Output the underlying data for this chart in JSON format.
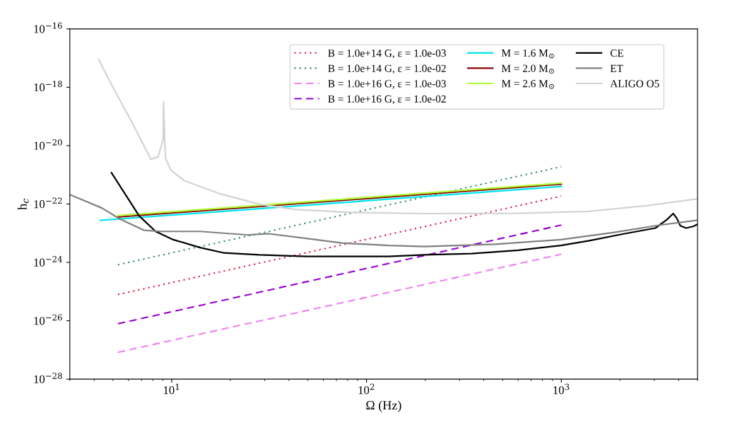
{
  "chart_data": {
    "type": "line",
    "xlabel": "Ω (Hz)",
    "ylabel": "h$_{c}$",
    "log": "xy",
    "grid": false,
    "legend": "top right",
    "xlim": [
      3,
      5000
    ],
    "ylim": [
      1e-28,
      1e-16
    ],
    "xticks": [
      {
        "value": 10,
        "label": "10$^{1}$"
      },
      {
        "value": 100,
        "label": "10$^{2}$"
      },
      {
        "value": 1000,
        "label": "10$^{3}$"
      }
    ],
    "yticks": [
      {
        "value": 1e-28,
        "label": "10$^{−28}$"
      },
      {
        "value": 1e-26,
        "label": "10$^{−26}$"
      },
      {
        "value": 1e-24,
        "label": "10$^{−24}$"
      },
      {
        "value": 1e-22,
        "label": "10$^{−22}$"
      },
      {
        "value": 1e-20,
        "label": "10$^{−20}$"
      },
      {
        "value": 1e-18,
        "label": "10$^{−18}$"
      },
      {
        "value": 1e-16,
        "label": "10$^{−16}$"
      }
    ],
    "series": [
      {
        "name": "B = 1.0e+14 G, ε = 1.0e-03",
        "color": "#dc143c",
        "line_style": "dotted",
        "x": [
          5.3,
          1000
        ],
        "values": [
          7.9e-26,
          1.86e-22
        ]
      },
      {
        "name": "B = 1.0e+14 G, ε = 1.0e-02",
        "color": "#2e8b57",
        "line_style": "dotted",
        "x": [
          5.3,
          1000
        ],
        "values": [
          8.3e-25,
          1.9e-21
        ]
      },
      {
        "name": "B = 1.0e+16 G, ε = 1.0e-03",
        "color": "#ee82ee",
        "line_style": "dashed",
        "x": [
          5.3,
          1000
        ],
        "values": [
          8.3e-28,
          1.9e-24
        ]
      },
      {
        "name": "B = 1.0e+16 G, ε = 1.0e-02",
        "color": "#9400d3",
        "line_style": "dashed",
        "x": [
          5.3,
          1000
        ],
        "values": [
          7.9e-27,
          1.9e-23
        ]
      },
      {
        "name": "M = 1.6 M$_{⊙}$",
        "color": "#00e5ee",
        "line_style": "solid",
        "x": [
          4.3,
          1000
        ],
        "values": [
          2.75e-23,
          4e-22
        ]
      },
      {
        "name": "M = 2.0 M$_{⊙}$",
        "color": "#8b0000",
        "line_style": "solid",
        "x": [
          5.3,
          1000
        ],
        "values": [
          3.6e-23,
          4.8e-22
        ]
      },
      {
        "name": "M = 2.6 M$_{⊙}$",
        "color": "#adff2f",
        "line_style": "solid",
        "x": [
          5.3,
          1000
        ],
        "values": [
          4e-23,
          5.2e-22
        ]
      },
      {
        "name": "CE",
        "color": "#000000",
        "line_style": "solid",
        "x": [
          4.91,
          6.81,
          8.27,
          10.05,
          14.0,
          18.6,
          28.2,
          49,
          130,
          198,
          346,
          603,
          995,
          1390,
          2110,
          3040,
          3480,
          3750,
          3910,
          4080,
          4370,
          4740,
          5000
        ],
        "values": [
          1.17e-21,
          3.9e-23,
          1.15e-23,
          6.2e-24,
          3.2e-24,
          2.1e-24,
          1.8e-24,
          1.6e-24,
          1.6e-24,
          1.8e-24,
          2e-24,
          2.6e-24,
          3.8e-24,
          5.5e-24,
          9.6e-24,
          1.5e-23,
          2.9e-23,
          4.7e-23,
          3.3e-23,
          1.8e-23,
          1.5e-23,
          1.7e-23,
          2e-23
        ]
      },
      {
        "name": "ET",
        "color": "#808080",
        "line_style": "solid",
        "x": [
          3,
          4.36,
          5.45,
          7.2,
          8.75,
          14.0,
          24.5,
          31.5,
          49,
          74.7,
          130,
          198,
          458,
          995,
          1840,
          3210,
          5000
        ],
        "values": [
          2.1e-22,
          7.4e-23,
          3e-23,
          1.26e-23,
          1.15e-23,
          1.15e-23,
          8.7e-24,
          9.6e-24,
          6.6e-24,
          4.6e-24,
          3.8e-24,
          3.5e-24,
          4.2e-24,
          6e-24,
          1.05e-23,
          1.9e-23,
          2.8e-23
        ]
      },
      {
        "name": "ALIGO O5",
        "color": "#d3d3d3",
        "line_style": "solid",
        "x": [
          4.22,
          5.0,
          6.27,
          7.82,
          8.5,
          9.04,
          9.08,
          9.2,
          9.3,
          9.9,
          11.6,
          17.5,
          28.2,
          42.9,
          86,
          198,
          603,
          1390,
          2790,
          5000
        ],
        "values": [
          8.9e-18,
          9.8e-19,
          6e-20,
          3.4e-21,
          4.1e-21,
          1.6e-20,
          3.2e-19,
          1.8e-20,
          3.7e-21,
          1.45e-21,
          6.3e-22,
          2.3e-22,
          9.8e-23,
          6.5e-23,
          5.1e-23,
          4.7e-23,
          4.8e-23,
          5.6e-23,
          8.9e-23,
          1.5e-22
        ]
      }
    ]
  }
}
